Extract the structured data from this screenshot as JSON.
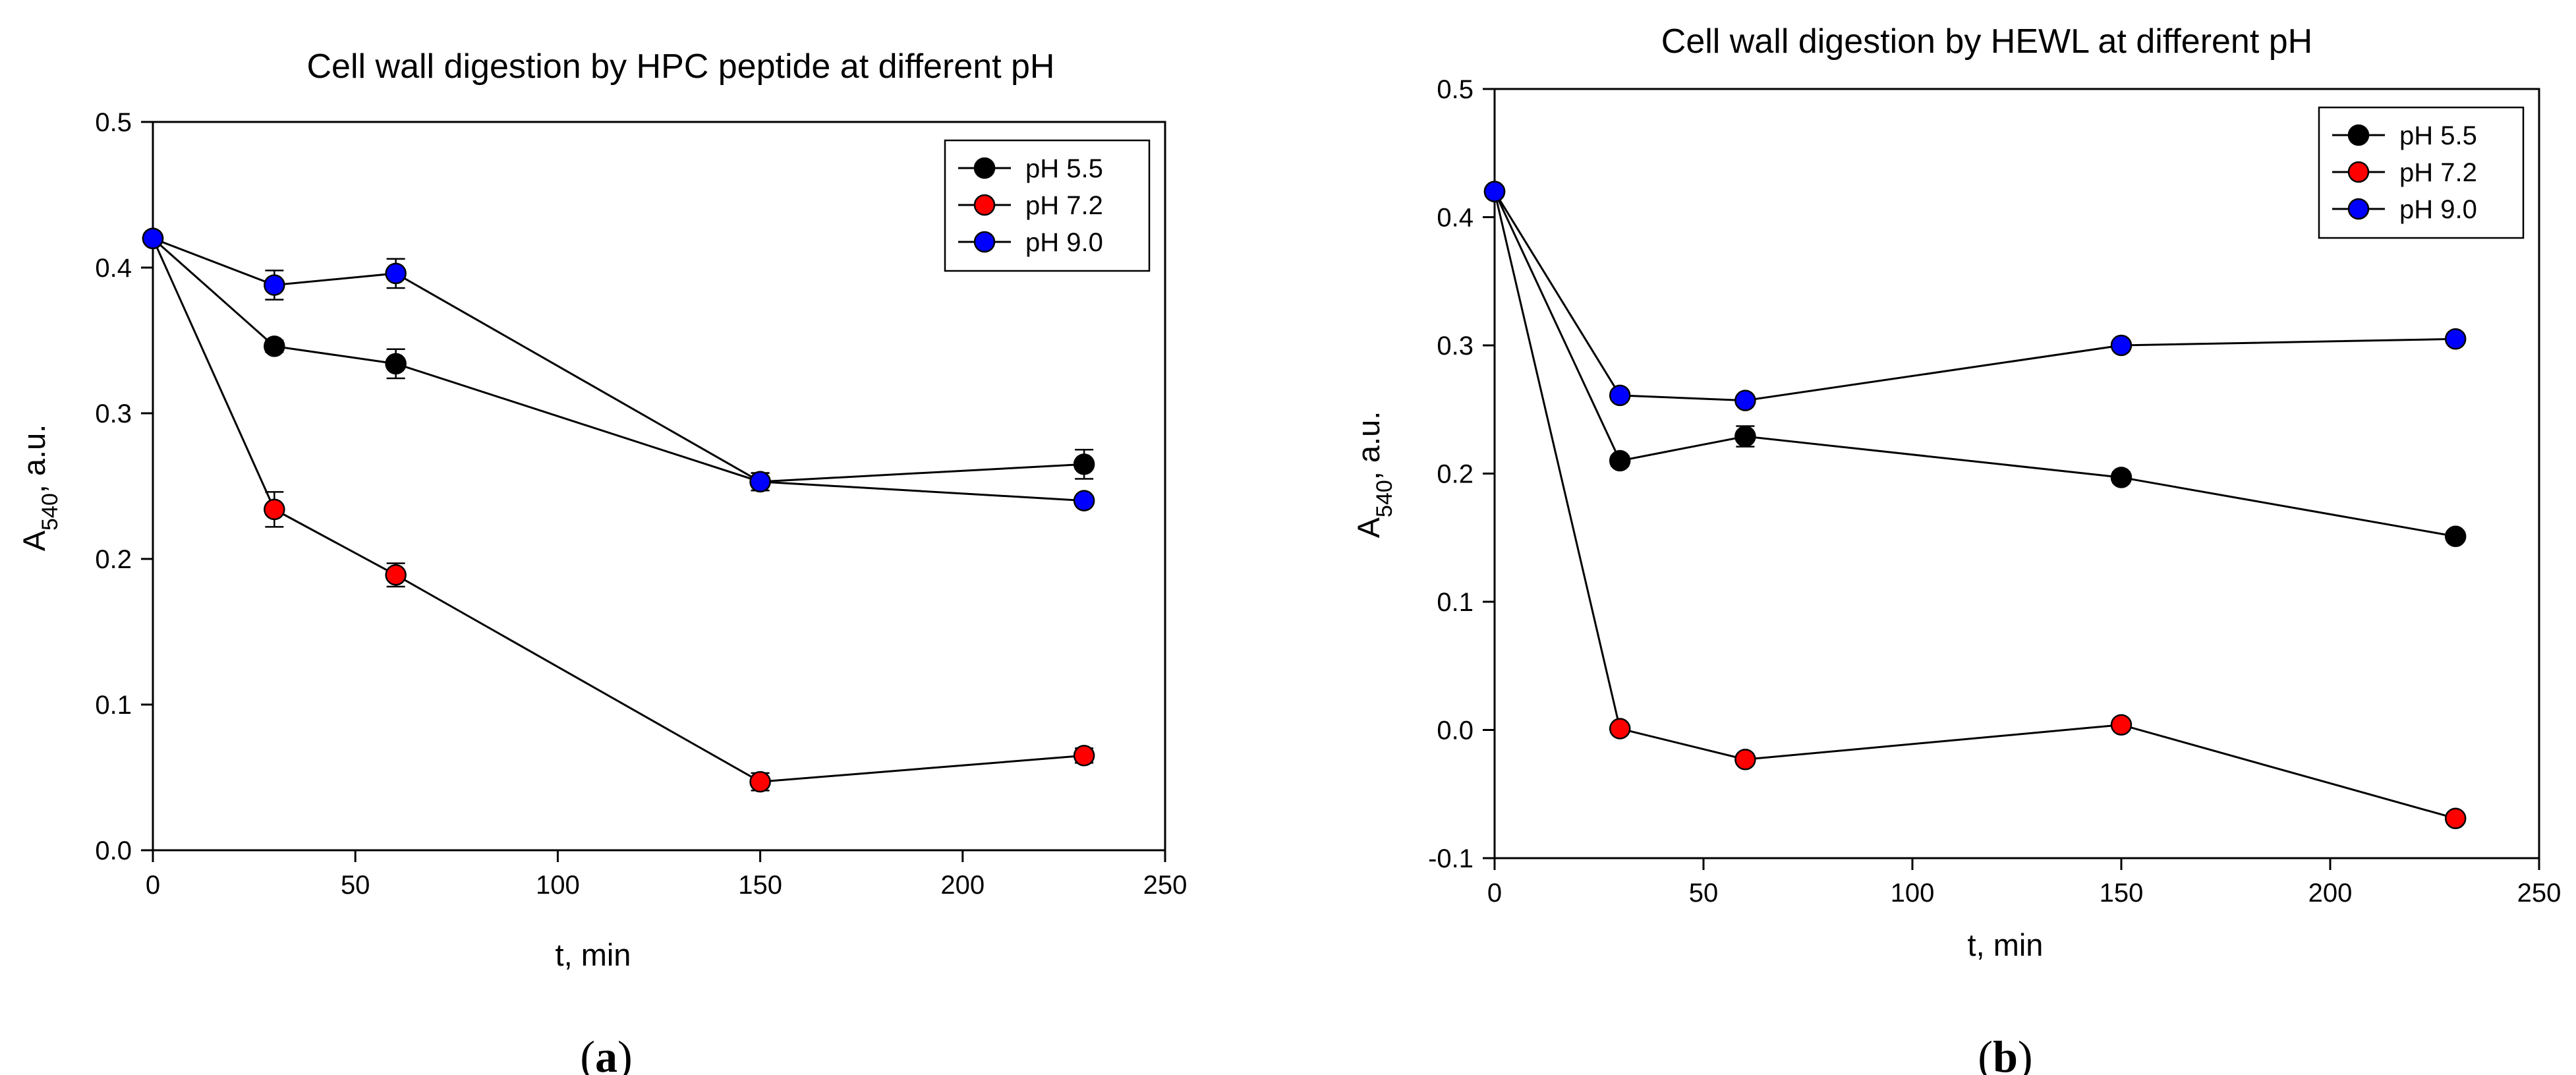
{
  "figure": {
    "panels": [
      {
        "label": "a"
      },
      {
        "label": "b"
      }
    ]
  },
  "colors": {
    "pH 5.5": "#000000",
    "pH 7.2": "#ff0000",
    "pH 9.0": "#0000ff",
    "axis": "#000000",
    "line": "#000000"
  },
  "chart_data": [
    {
      "type": "line",
      "title": "Cell wall digestion by HPC peptide at different pH",
      "xlabel": "t, min",
      "ylabel_main": "A",
      "ylabel_sub": "540",
      "ylabel_suffix": ", a.u.",
      "xlim": [
        0,
        250
      ],
      "ylim": [
        0.0,
        0.5
      ],
      "xticks": [
        0,
        50,
        100,
        150,
        200,
        250
      ],
      "yticks": [
        0.0,
        0.1,
        0.2,
        0.3,
        0.4,
        0.5
      ],
      "xtick_labels": [
        "0",
        "50",
        "100",
        "150",
        "200",
        "250"
      ],
      "ytick_labels": [
        "0.0",
        "0.1",
        "0.2",
        "0.3",
        "0.4",
        "0.5"
      ],
      "x": [
        0,
        30,
        60,
        150,
        230
      ],
      "legend_position": "top-right",
      "grid": false,
      "series": [
        {
          "name": "pH 5.5",
          "values": [
            0.42,
            0.346,
            0.334,
            0.253,
            0.265
          ],
          "errors": [
            0.002,
            0.004,
            0.01,
            0.006,
            0.01
          ]
        },
        {
          "name": "pH 7.2",
          "values": [
            0.42,
            0.234,
            0.189,
            0.047,
            0.065
          ],
          "errors": [
            0.002,
            0.012,
            0.008,
            0.006,
            0.005
          ]
        },
        {
          "name": "pH 9.0",
          "values": [
            0.42,
            0.388,
            0.396,
            0.253,
            0.24
          ],
          "errors": [
            0.002,
            0.01,
            0.01,
            0.006,
            0.003
          ]
        }
      ]
    },
    {
      "type": "line",
      "title": "Cell wall digestion by HEWL at different pH",
      "xlabel": "t, min",
      "ylabel_main": "A",
      "ylabel_sub": "540",
      "ylabel_suffix": ", a.u.",
      "xlim": [
        0,
        250
      ],
      "ylim": [
        -0.1,
        0.5
      ],
      "xticks": [
        0,
        50,
        100,
        150,
        200,
        250
      ],
      "yticks": [
        -0.1,
        0.0,
        0.1,
        0.2,
        0.3,
        0.4,
        0.5
      ],
      "xtick_labels": [
        "0",
        "50",
        "100",
        "150",
        "200",
        "250"
      ],
      "ytick_labels": [
        "-0.1",
        "0.0",
        "0.1",
        "0.2",
        "0.3",
        "0.4",
        "0.5"
      ],
      "x": [
        0,
        30,
        60,
        150,
        230
      ],
      "legend_position": "top-right",
      "grid": false,
      "series": [
        {
          "name": "pH 5.5",
          "values": [
            0.42,
            0.21,
            0.229,
            0.197,
            0.151
          ],
          "errors": [
            0.002,
            0.004,
            0.008,
            0.004,
            0.003
          ]
        },
        {
          "name": "pH 7.2",
          "values": [
            0.42,
            0.001,
            -0.023,
            0.004,
            -0.069
          ],
          "errors": [
            0.002,
            0.003,
            0.003,
            0.003,
            0.003
          ]
        },
        {
          "name": "pH 9.0",
          "values": [
            0.42,
            0.261,
            0.257,
            0.3,
            0.305
          ],
          "errors": [
            0.002,
            0.003,
            0.003,
            0.003,
            0.003
          ]
        }
      ]
    }
  ]
}
